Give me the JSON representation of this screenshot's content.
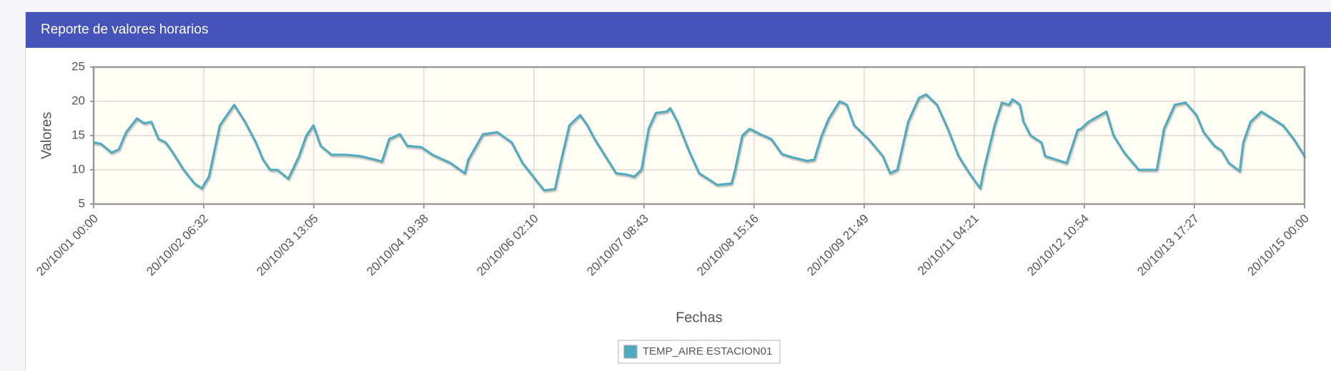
{
  "chart_data": {
    "type": "line",
    "title": "Reporte de valores horarios",
    "x_label": "Fechas",
    "y_label": "Valores",
    "grid": true,
    "ylim": [
      5,
      25
    ],
    "yticks": [
      5,
      10,
      15,
      20,
      25
    ],
    "xlim": [
      "20/10/01 00:00",
      "20/10/15 00:00"
    ],
    "xticks": [
      "20/10/01 00:00",
      "20/10/02 06:32",
      "20/10/03 13:05",
      "20/10/04 19:38",
      "20/10/06 02:10",
      "20/10/07 08:43",
      "20/10/08 15:16",
      "20/10/09 21:49",
      "20/10/11 04:21",
      "20/10/12 10:54",
      "20/10/13 17:27",
      "20/10/15 00:00"
    ],
    "x": [
      "20/10/01 00:00",
      "20/10/01 02:00",
      "20/10/01 05:00",
      "20/10/01 07:00",
      "20/10/01 09:00",
      "20/10/01 12:00",
      "20/10/01 14:00",
      "20/10/01 16:00",
      "20/10/01 18:00",
      "20/10/01 20:00",
      "20/10/01 22:00",
      "20/10/02 01:00",
      "20/10/02 04:00",
      "20/10/02 06:00",
      "20/10/02 08:00",
      "20/10/02 11:00",
      "20/10/02 13:00",
      "20/10/02 15:00",
      "20/10/02 18:00",
      "20/10/02 21:00",
      "20/10/02 23:00",
      "20/10/03 01:00",
      "20/10/03 03:00",
      "20/10/03 06:00",
      "20/10/03 09:00",
      "20/10/03 11:00",
      "20/10/03 13:00",
      "20/10/03 15:00",
      "20/10/03 18:00",
      "20/10/03 22:00",
      "20/10/04 02:00",
      "20/10/04 06:00",
      "20/10/04 08:00",
      "20/10/04 10:00",
      "20/10/04 13:00",
      "20/10/04 15:00",
      "20/10/04 19:00",
      "20/10/04 22:00",
      "20/10/05 03:00",
      "20/10/05 07:00",
      "20/10/05 08:00",
      "20/10/05 12:00",
      "20/10/05 16:00",
      "20/10/05 20:00",
      "20/10/05 23:00",
      "20/10/06 02:00",
      "20/10/06 05:00",
      "20/10/06 08:00",
      "20/10/06 10:00",
      "20/10/06 12:00",
      "20/10/06 15:00",
      "20/10/06 17:00",
      "20/10/06 19:00",
      "20/10/06 22:00",
      "20/10/07 01:00",
      "20/10/07 04:00",
      "20/10/07 06:00",
      "20/10/07 08:00",
      "20/10/07 10:00",
      "20/10/07 12:00",
      "20/10/07 15:00",
      "20/10/07 16:00",
      "20/10/07 18:00",
      "20/10/07 21:00",
      "20/10/08 00:00",
      "20/10/08 03:00",
      "20/10/08 05:00",
      "20/10/08 09:00",
      "20/10/08 10:00",
      "20/10/08 12:00",
      "20/10/08 14:00",
      "20/10/08 17:00",
      "20/10/08 20:00",
      "20/10/08 23:00",
      "20/10/09 02:00",
      "20/10/09 06:00",
      "20/10/09 08:00",
      "20/10/09 10:00",
      "20/10/09 12:00",
      "20/10/09 15:00",
      "20/10/09 17:00",
      "20/10/09 19:00",
      "20/10/09 23:00",
      "20/10/10 03:00",
      "20/10/10 05:00",
      "20/10/10 07:00",
      "20/10/10 10:00",
      "20/10/10 13:00",
      "20/10/10 15:00",
      "20/10/10 18:00",
      "20/10/10 21:00",
      "20/10/11 00:00",
      "20/10/11 03:00",
      "20/10/11 06:00",
      "20/10/11 07:00",
      "20/10/11 10:00",
      "20/10/11 12:00",
      "20/10/11 14:00",
      "20/10/11 15:00",
      "20/10/11 17:00",
      "20/10/11 18:00",
      "20/10/11 20:00",
      "20/10/11 23:00",
      "20/10/12 00:00",
      "20/10/12 03:00",
      "20/10/12 06:00",
      "20/10/12 09:00",
      "20/10/12 10:00",
      "20/10/12 12:00",
      "20/10/12 17:00",
      "20/10/12 19:00",
      "20/10/12 22:00",
      "20/10/13 02:00",
      "20/10/13 05:00",
      "20/10/13 07:00",
      "20/10/13 09:00",
      "20/10/13 12:00",
      "20/10/13 15:00",
      "20/10/13 18:00",
      "20/10/13 20:00",
      "20/10/13 23:00",
      "20/10/14 01:00",
      "20/10/14 03:00",
      "20/10/14 06:00",
      "20/10/14 07:00",
      "20/10/14 09:00",
      "20/10/14 12:00",
      "20/10/14 15:00",
      "20/10/14 18:00",
      "20/10/14 21:00",
      "20/10/15 00:00"
    ],
    "series": [
      {
        "name": "TEMP_AIRE ESTACION01",
        "color": "#4eaabf",
        "values": [
          14,
          13.8,
          12.5,
          13,
          15.5,
          17.5,
          16.8,
          17,
          14.5,
          14,
          12.5,
          10,
          8,
          7.3,
          9,
          16.5,
          18,
          19.5,
          17,
          14,
          11.5,
          10,
          10,
          8.7,
          12,
          15,
          16.5,
          13.5,
          12.2,
          12.2,
          12,
          11.5,
          11.2,
          14.5,
          15.2,
          13.5,
          13.3,
          12.2,
          11,
          9.5,
          11.5,
          15.2,
          15.5,
          14,
          11,
          9,
          7,
          7.2,
          12,
          16.5,
          18,
          16.5,
          14.5,
          12,
          9.5,
          9.3,
          9,
          10,
          16,
          18.3,
          18.5,
          19,
          17,
          13,
          9.5,
          8.5,
          7.8,
          8,
          10,
          15,
          16,
          15.2,
          14.5,
          12.3,
          11.8,
          11.3,
          11.5,
          15,
          17.5,
          20,
          19.5,
          16.5,
          14.5,
          12,
          9.5,
          10,
          17,
          20.5,
          21,
          19.5,
          16,
          12,
          9.5,
          7.3,
          10,
          16.5,
          19.8,
          19.5,
          20.3,
          19.5,
          17,
          15,
          14,
          12,
          11.5,
          11,
          15.8,
          16,
          17,
          18.5,
          15,
          12.5,
          10,
          10,
          10,
          16,
          19.5,
          19.8,
          18,
          15.5,
          13.5,
          12.8,
          11,
          9.8,
          14,
          17,
          18.5,
          17.5,
          16.5,
          14.5,
          12
        ]
      }
    ]
  }
}
